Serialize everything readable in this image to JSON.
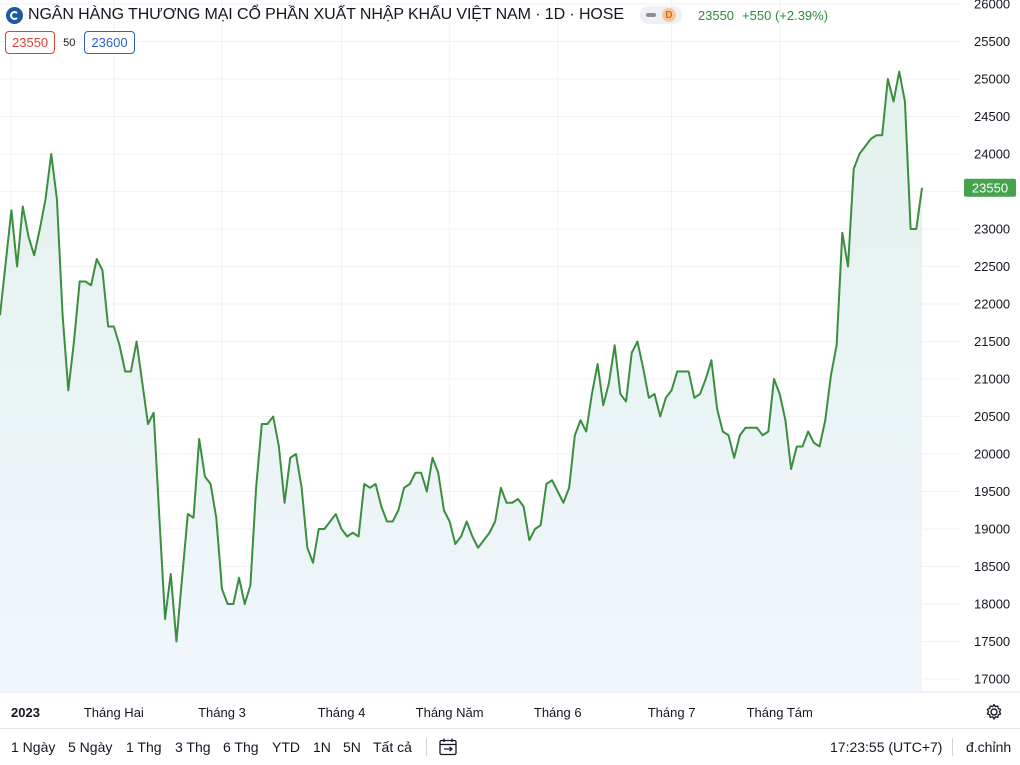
{
  "header": {
    "title": "NGÂN HÀNG THƯƠNG MẠI CỔ PHẦN XUẤT NHẬP KHẨU VIỆT NAM · 1D · HOSE",
    "mode_label": "D",
    "price": "23550",
    "change": "+550 (+2.39%)"
  },
  "quotes": {
    "sell": "23550",
    "spread": "50",
    "buy": "23600"
  },
  "range_buttons": [
    "1 Ngày",
    "5 Ngày",
    "1 Thg",
    "3 Thg",
    "6 Thg",
    "YTD",
    "1N",
    "5N",
    "Tất cả"
  ],
  "footer": {
    "time": "17:23:55 (UTC+7)",
    "adjust_label": "đ.chỉnh"
  },
  "icons": {
    "calendar": "calendar-icon",
    "settings": "gear-icon",
    "logo": "exchange-logo-icon"
  },
  "colors": {
    "line": "#3a8f3f",
    "up": "#2e8b3a",
    "price_badge": "#45a34d",
    "fill_top": "#e3f1ec",
    "fill_bottom": "#f1f6fd"
  },
  "chart_data": {
    "type": "area",
    "title": "NGÂN HÀNG THƯƠNG MẠI CỔ PHẦN XUẤT NHẬP KHẨU VIỆT NAM · 1D · HOSE",
    "xlabel": "",
    "ylabel": "",
    "ylim": [
      17000,
      26000
    ],
    "y_ticks": [
      17000,
      17500,
      18000,
      18500,
      19000,
      19500,
      20000,
      20500,
      21000,
      21500,
      22000,
      22500,
      23000,
      23500,
      24000,
      24500,
      25000,
      25500,
      26000
    ],
    "x_ticks": [
      {
        "index": 2,
        "label": "2023"
      },
      {
        "index": 20,
        "label": "Tháng Hai"
      },
      {
        "index": 39,
        "label": "Tháng 3"
      },
      {
        "index": 60,
        "label": "Tháng 4"
      },
      {
        "index": 79,
        "label": "Tháng Năm"
      },
      {
        "index": 98,
        "label": "Tháng 6"
      },
      {
        "index": 118,
        "label": "Tháng 7"
      },
      {
        "index": 137,
        "label": "Tháng Tám"
      }
    ],
    "last_price": 23550,
    "grid": true,
    "series": [
      {
        "values": [
          21850,
          22550,
          23250,
          22500,
          23300,
          22900,
          22650,
          23000,
          23400,
          24000,
          23400,
          21850,
          20850,
          21500,
          22300,
          22300,
          22250,
          22600,
          22450,
          21700,
          21700,
          21450,
          21100,
          21100,
          21500,
          20950,
          20400,
          20550,
          19150,
          17800,
          18400,
          17500,
          18350,
          19200,
          19150,
          20200,
          19700,
          19600,
          19150,
          18200,
          18000,
          18000,
          18350,
          18000,
          18250,
          19550,
          20400,
          20400,
          20500,
          20100,
          19350,
          19950,
          20000,
          19550,
          18750,
          18550,
          19000,
          19000,
          19100,
          19200,
          19000,
          18900,
          18950,
          18900,
          19600,
          19550,
          19600,
          19300,
          19100,
          19100,
          19250,
          19550,
          19600,
          19750,
          19750,
          19500,
          19950,
          19750,
          19250,
          19100,
          18800,
          18900,
          19100,
          18900,
          18750,
          18850,
          18950,
          19100,
          19550,
          19350,
          19350,
          19400,
          19300,
          18850,
          19000,
          19050,
          19600,
          19650,
          19500,
          19350,
          19550,
          20250,
          20450,
          20300,
          20800,
          21200,
          20650,
          20950,
          21450,
          20800,
          20700,
          21350,
          21500,
          21150,
          20750,
          20800,
          20500,
          20750,
          20850,
          21100,
          21100,
          21100,
          20750,
          20800,
          21000,
          21250,
          20600,
          20300,
          20250,
          19950,
          20250,
          20350,
          20350,
          20350,
          20250,
          20300,
          21000,
          20800,
          20450,
          19800,
          20100,
          20100,
          20300,
          20150,
          20100,
          20450,
          21050,
          21450,
          22950,
          22500,
          23800,
          24000,
          24100,
          24200,
          24250,
          24250,
          25000,
          24700,
          25100,
          24700,
          23000,
          23000,
          23550
        ]
      }
    ]
  }
}
